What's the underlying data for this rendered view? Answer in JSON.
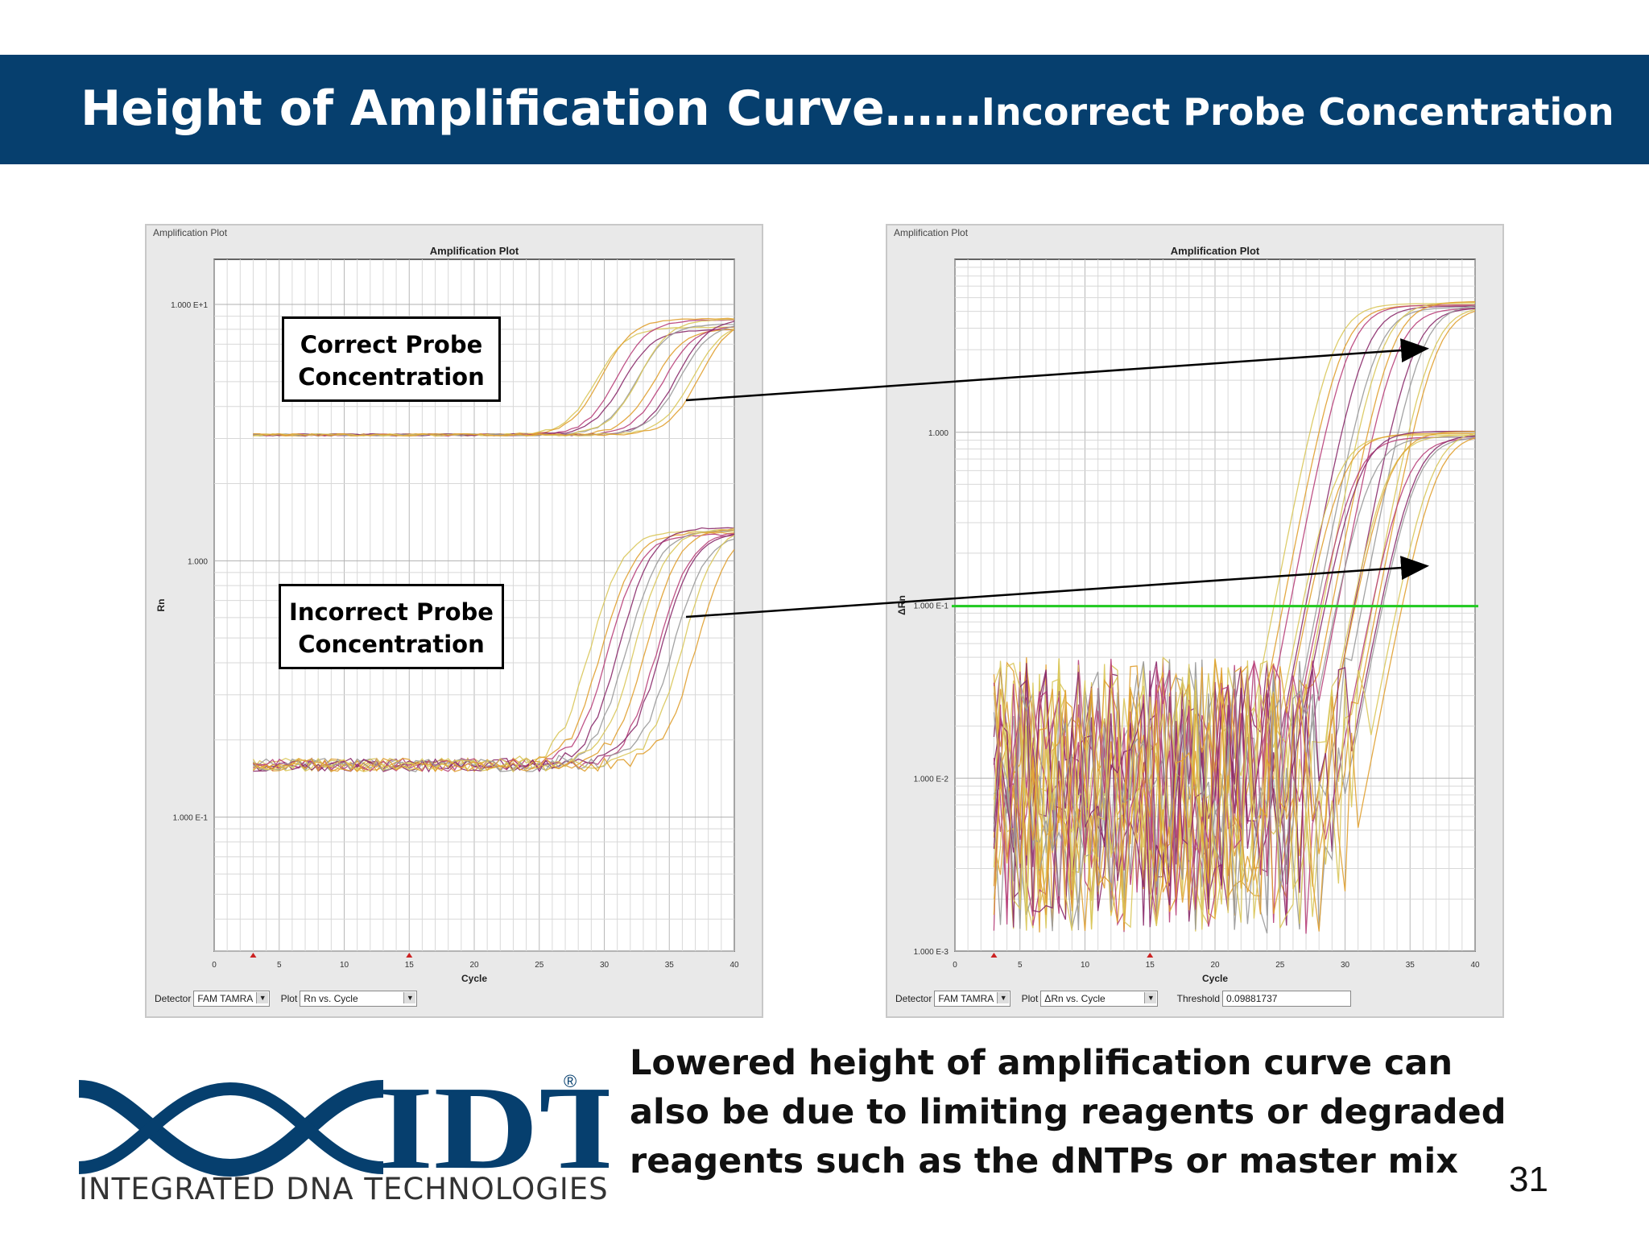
{
  "slide": {
    "title_main": "Height of Amplification Curve……",
    "title_sub": "Incorrect Probe Concentration",
    "caption": "Lowered height of amplification curve can also be due to limiting reagents or degraded reagents such as the dNTPs or master mix",
    "page_number": "31",
    "logo_letters": "IDT",
    "logo_registered": "®",
    "logo_text": "INTEGRATED DNA TECHNOLOGIES",
    "header_color": "#063f6e"
  },
  "annotations": {
    "correct_line1": "Correct Probe",
    "correct_line2": "Concentration",
    "incorrect_line1": "Incorrect Probe",
    "incorrect_line2": "Concentration"
  },
  "left_panel": {
    "window_title": "Amplification Plot",
    "detector_label": "Detector",
    "detector_value": "FAM TAMRA",
    "plot_label": "Plot",
    "plot_value": "Rn vs. Cycle"
  },
  "right_panel": {
    "window_title": "Amplification Plot",
    "detector_label": "Detector",
    "detector_value": "FAM TAMRA",
    "plot_label": "Plot",
    "plot_value": "ΔRn vs. Cycle",
    "threshold_label": "Threshold",
    "threshold_value": "0.09881737"
  },
  "chart_data": [
    {
      "type": "line",
      "title": "Amplification Plot",
      "xlabel": "Cycle",
      "ylabel": "Rn",
      "x_ticks": [
        "0",
        "5",
        "10",
        "15",
        "20",
        "25",
        "30",
        "35",
        "40"
      ],
      "xlim": [
        0,
        40
      ],
      "y_scale": "log",
      "y_ticks": [
        {
          "label": "1.000 E+1",
          "value": 10
        },
        {
          "label": "1.000",
          "value": 1
        },
        {
          "label": "1.000 E-1",
          "value": 0.1
        }
      ],
      "ylim": [
        0.03,
        15
      ],
      "grid": true,
      "groups": [
        {
          "baseline": 3.1,
          "plateau": 8.6,
          "ct_range": [
            30,
            38
          ],
          "count": 12,
          "colors": [
            "#d9c65a",
            "#e0a030",
            "#b8407a",
            "#8a2a6a",
            "#999999"
          ]
        },
        {
          "baseline": 0.16,
          "plateau": 1.35,
          "ct_range": [
            30,
            38
          ],
          "count": 12,
          "colors": [
            "#d9c65a",
            "#e0a030",
            "#b8407a",
            "#8a2a6a",
            "#999999"
          ]
        }
      ]
    },
    {
      "type": "line",
      "title": "Amplification Plot",
      "xlabel": "Cycle",
      "ylabel": "ΔRn",
      "x_ticks": [
        "0",
        "5",
        "10",
        "15",
        "20",
        "25",
        "30",
        "35",
        "40"
      ],
      "xlim": [
        0,
        40
      ],
      "y_scale": "log",
      "y_ticks": [
        {
          "label": "1.000",
          "value": 1
        },
        {
          "label": "1.000 E-1",
          "value": 0.1
        },
        {
          "label": "1.000 E-2",
          "value": 0.01
        },
        {
          "label": "1.000 E-3",
          "value": 0.001
        }
      ],
      "ylim": [
        0.001,
        10
      ],
      "threshold": 0.09881737,
      "threshold_color": "#22cc22",
      "grid": true,
      "groups": [
        {
          "plateau": 5.6,
          "ct_range": [
            29,
            37
          ],
          "count": 12,
          "colors": [
            "#d9c65a",
            "#e0a030",
            "#b8407a",
            "#8a2a6a",
            "#999999"
          ]
        },
        {
          "plateau": 1.0,
          "ct_range": [
            29,
            37
          ],
          "count": 12,
          "colors": [
            "#d9c65a",
            "#e0a030",
            "#b8407a",
            "#8a2a6a",
            "#999999"
          ]
        }
      ]
    }
  ]
}
